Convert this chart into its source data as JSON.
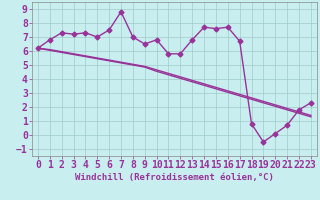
{
  "xlabel": "Windchill (Refroidissement éolien,°C)",
  "x_values": [
    0,
    1,
    2,
    3,
    4,
    5,
    6,
    7,
    8,
    9,
    10,
    11,
    12,
    13,
    14,
    15,
    16,
    17,
    18,
    19,
    20,
    21,
    22,
    23
  ],
  "y_data": [
    6.2,
    6.8,
    7.3,
    7.2,
    7.3,
    7.0,
    7.5,
    8.8,
    7.0,
    6.5,
    6.8,
    5.8,
    5.8,
    6.8,
    7.7,
    7.6,
    7.7,
    6.7,
    0.8,
    -0.5,
    0.1,
    0.7,
    1.8,
    2.3
  ],
  "y_trend1": [
    6.2,
    6.05,
    5.9,
    5.75,
    5.6,
    5.45,
    5.3,
    5.15,
    5.0,
    4.85,
    4.55,
    4.3,
    4.05,
    3.8,
    3.55,
    3.3,
    3.05,
    2.8,
    2.55,
    2.3,
    2.05,
    1.8,
    1.55,
    1.3
  ],
  "y_trend2": [
    6.2,
    6.1,
    5.95,
    5.8,
    5.65,
    5.5,
    5.35,
    5.2,
    5.05,
    4.9,
    4.65,
    4.4,
    4.15,
    3.9,
    3.65,
    3.4,
    3.15,
    2.9,
    2.65,
    2.4,
    2.15,
    1.9,
    1.65,
    1.4
  ],
  "line_color": "#993399",
  "bg_color": "#c8eef0",
  "grid_color": "#a0ccc8",
  "ylim": [
    -1.5,
    9.5
  ],
  "xlim": [
    -0.5,
    23.5
  ],
  "yticks": [
    -1,
    0,
    1,
    2,
    3,
    4,
    5,
    6,
    7,
    8,
    9
  ],
  "xticks": [
    0,
    1,
    2,
    3,
    4,
    5,
    6,
    7,
    8,
    9,
    10,
    11,
    12,
    13,
    14,
    15,
    16,
    17,
    18,
    19,
    20,
    21,
    22,
    23
  ],
  "marker": "D",
  "markersize": 2.5,
  "linewidth": 1.0,
  "tick_font_size": 7.0,
  "xlabel_font_size": 6.5
}
